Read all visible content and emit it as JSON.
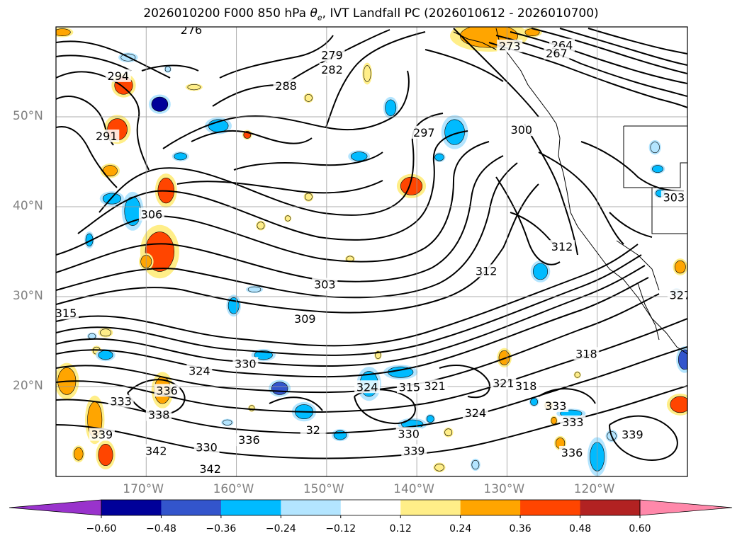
{
  "title": {
    "prefix": "2026010200 F000 850 hPa ",
    "theta": "θ",
    "theta_sub": "e",
    "suffix": ", IVT Landfall PC (2026010612 - 2026010700)"
  },
  "map": {
    "lon_range": [
      -180,
      -110
    ],
    "lat_range": [
      10,
      60
    ],
    "lat_labels": [
      {
        "lat": 50,
        "text": "50°N"
      },
      {
        "lat": 40,
        "text": "40°N"
      },
      {
        "lat": 30,
        "text": "30°N"
      },
      {
        "lat": 20,
        "text": "20°N"
      }
    ],
    "lon_labels": [
      {
        "lon": -170,
        "text": "170°W"
      },
      {
        "lon": -160,
        "text": "160°W"
      },
      {
        "lon": -150,
        "text": "150°W"
      },
      {
        "lon": -140,
        "text": "140°W"
      },
      {
        "lon": -130,
        "text": "130°W"
      },
      {
        "lon": -120,
        "text": "120°W"
      }
    ],
    "grid": true,
    "contour_labels": [
      {
        "text": "276",
        "lon": -165.0,
        "lat": 59.6
      },
      {
        "text": "279",
        "lon": -149.4,
        "lat": 56.8
      },
      {
        "text": "282",
        "lon": -149.4,
        "lat": 55.2
      },
      {
        "text": "288",
        "lon": -154.5,
        "lat": 53.4
      },
      {
        "text": "294",
        "lon": -173.1,
        "lat": 54.5
      },
      {
        "text": "291",
        "lon": -174.4,
        "lat": 47.8
      },
      {
        "text": "306",
        "lon": -169.4,
        "lat": 39.1
      },
      {
        "text": "297",
        "lon": -139.2,
        "lat": 48.2
      },
      {
        "text": "300",
        "lon": -128.4,
        "lat": 48.5
      },
      {
        "text": "264",
        "lon": -123.9,
        "lat": 57.9
      },
      {
        "text": "267",
        "lon": -124.5,
        "lat": 57.0
      },
      {
        "text": "273",
        "lon": -129.7,
        "lat": 57.8
      },
      {
        "text": "303",
        "lon": -150.2,
        "lat": 31.3
      },
      {
        "text": "309",
        "lon": -152.4,
        "lat": 27.5
      },
      {
        "text": "312",
        "lon": -132.3,
        "lat": 32.8
      },
      {
        "text": "312",
        "lon": -123.9,
        "lat": 35.5
      },
      {
        "text": "315",
        "lon": -178.9,
        "lat": 28.1
      },
      {
        "text": "315",
        "lon": -140.8,
        "lat": 19.9
      },
      {
        "text": "318",
        "lon": -121.2,
        "lat": 23.6
      },
      {
        "text": "318",
        "lon": -127.9,
        "lat": 20.0
      },
      {
        "text": "321",
        "lon": -138.0,
        "lat": 20.0
      },
      {
        "text": "321",
        "lon": -130.4,
        "lat": 20.3
      },
      {
        "text": "324",
        "lon": -164.1,
        "lat": 21.7
      },
      {
        "text": "324",
        "lon": -145.5,
        "lat": 19.9
      },
      {
        "text": "324",
        "lon": -133.5,
        "lat": 17.0
      },
      {
        "text": "327",
        "lon": -110.8,
        "lat": 30.1
      },
      {
        "text": "330",
        "lon": -159.0,
        "lat": 22.5
      },
      {
        "text": "330",
        "lon": -163.3,
        "lat": 13.2
      },
      {
        "text": "330",
        "lon": -140.9,
        "lat": 14.7
      },
      {
        "text": "333",
        "lon": -172.8,
        "lat": 18.3
      },
      {
        "text": "333",
        "lon": -124.6,
        "lat": 17.8
      },
      {
        "text": "333",
        "lon": -122.7,
        "lat": 16.0
      },
      {
        "text": "336",
        "lon": -167.7,
        "lat": 19.5
      },
      {
        "text": "336",
        "lon": -158.6,
        "lat": 14.0
      },
      {
        "text": "336",
        "lon": -122.8,
        "lat": 12.6
      },
      {
        "text": "338",
        "lon": -168.6,
        "lat": 16.8
      },
      {
        "text": "339",
        "lon": -174.9,
        "lat": 14.6
      },
      {
        "text": "339",
        "lon": -140.3,
        "lat": 12.8
      },
      {
        "text": "339",
        "lon": -116.1,
        "lat": 14.6
      },
      {
        "text": "342",
        "lon": -168.9,
        "lat": 12.8
      },
      {
        "text": "342",
        "lon": -162.9,
        "lat": 10.8
      },
      {
        "text": "32",
        "lon": -151.5,
        "lat": 15.1
      },
      {
        "text": "303",
        "lon": -111.5,
        "lat": 41.0
      }
    ],
    "pc_blobs": [
      {
        "lon": -179.3,
        "lat": 59.4,
        "rx": 0.9,
        "ry": 0.4,
        "level": 0.3
      },
      {
        "lon": -172.5,
        "lat": 53.5,
        "rx": 1.0,
        "ry": 1.0,
        "level": 0.42
      },
      {
        "lon": -168.5,
        "lat": 51.4,
        "rx": 0.9,
        "ry": 0.8,
        "level": -0.5
      },
      {
        "lon": -162.0,
        "lat": 49.0,
        "rx": 1.1,
        "ry": 0.7,
        "level": -0.35
      },
      {
        "lon": -158.8,
        "lat": 48.0,
        "rx": 0.4,
        "ry": 0.4,
        "level": 0.4
      },
      {
        "lon": -173.2,
        "lat": 48.6,
        "rx": 1.1,
        "ry": 1.2,
        "level": 0.42
      },
      {
        "lon": -167.8,
        "lat": 41.8,
        "rx": 0.9,
        "ry": 1.4,
        "level": 0.4
      },
      {
        "lon": -174.0,
        "lat": 44.0,
        "rx": 0.8,
        "ry": 0.6,
        "level": 0.25
      },
      {
        "lon": -173.8,
        "lat": 40.9,
        "rx": 1.0,
        "ry": 0.6,
        "level": -0.3
      },
      {
        "lon": -171.5,
        "lat": 39.5,
        "rx": 0.9,
        "ry": 1.6,
        "level": -0.3
      },
      {
        "lon": -168.5,
        "lat": 35.0,
        "rx": 1.6,
        "ry": 2.2,
        "level": 0.38
      },
      {
        "lon": -170.0,
        "lat": 33.9,
        "rx": 0.6,
        "ry": 0.7,
        "level": 0.25
      },
      {
        "lon": -176.3,
        "lat": 36.3,
        "rx": 0.4,
        "ry": 0.7,
        "level": -0.3
      },
      {
        "lon": -166.2,
        "lat": 45.6,
        "rx": 0.7,
        "ry": 0.4,
        "level": -0.3
      },
      {
        "lon": -160.3,
        "lat": 29.0,
        "rx": 0.6,
        "ry": 0.9,
        "level": -0.3
      },
      {
        "lon": -158.0,
        "lat": 30.8,
        "rx": 0.7,
        "ry": 0.3,
        "level": -0.2
      },
      {
        "lon": -140.6,
        "lat": 42.3,
        "rx": 1.2,
        "ry": 1.0,
        "level": 0.45
      },
      {
        "lon": -135.8,
        "lat": 48.3,
        "rx": 1.1,
        "ry": 1.4,
        "level": -0.35
      },
      {
        "lon": -142.9,
        "lat": 51.0,
        "rx": 0.6,
        "ry": 0.9,
        "level": -0.3
      },
      {
        "lon": -137.5,
        "lat": 45.5,
        "rx": 0.5,
        "ry": 0.4,
        "level": -0.25
      },
      {
        "lon": -146.4,
        "lat": 45.6,
        "rx": 0.9,
        "ry": 0.5,
        "level": -0.35
      },
      {
        "lon": -132.0,
        "lat": 59.0,
        "rx": 3.2,
        "ry": 1.3,
        "level": 0.32
      },
      {
        "lon": -127.2,
        "lat": 59.4,
        "rx": 0.8,
        "ry": 0.4,
        "level": 0.28
      },
      {
        "lon": -145.5,
        "lat": 54.8,
        "rx": 0.4,
        "ry": 0.9,
        "level": 0.2
      },
      {
        "lon": -152.0,
        "lat": 52.1,
        "rx": 0.4,
        "ry": 0.4,
        "level": 0.22
      },
      {
        "lon": -164.7,
        "lat": 53.3,
        "rx": 0.7,
        "ry": 0.3,
        "level": 0.2
      },
      {
        "lon": -172.0,
        "lat": 56.6,
        "rx": 0.8,
        "ry": 0.4,
        "level": -0.22
      },
      {
        "lon": -167.6,
        "lat": 55.3,
        "rx": 0.3,
        "ry": 0.3,
        "level": -0.2
      },
      {
        "lon": -154.3,
        "lat": 38.7,
        "rx": 0.3,
        "ry": 0.3,
        "level": 0.2
      },
      {
        "lon": -152.0,
        "lat": 41.1,
        "rx": 0.4,
        "ry": 0.4,
        "level": 0.2
      },
      {
        "lon": -157.3,
        "lat": 37.9,
        "rx": 0.4,
        "ry": 0.4,
        "level": 0.2
      },
      {
        "lon": -147.4,
        "lat": 34.2,
        "rx": 0.4,
        "ry": 0.3,
        "level": 0.2
      },
      {
        "lon": -126.3,
        "lat": 32.8,
        "rx": 0.8,
        "ry": 0.9,
        "level": -0.3
      },
      {
        "lon": -113.6,
        "lat": 46.6,
        "rx": 0.5,
        "ry": 0.6,
        "level": -0.2
      },
      {
        "lon": -113.3,
        "lat": 44.2,
        "rx": 0.6,
        "ry": 0.4,
        "level": -0.3
      },
      {
        "lon": -113.0,
        "lat": 41.5,
        "rx": 0.5,
        "ry": 0.4,
        "level": -0.3
      },
      {
        "lon": -110.8,
        "lat": 33.3,
        "rx": 0.6,
        "ry": 0.7,
        "level": 0.25
      },
      {
        "lon": -111.2,
        "lat": 30.5,
        "rx": 0.5,
        "ry": 0.3,
        "level": -0.2
      },
      {
        "lon": -110.3,
        "lat": 23.0,
        "rx": 0.7,
        "ry": 1.1,
        "level": -0.4
      },
      {
        "lon": -110.8,
        "lat": 18.0,
        "rx": 1.1,
        "ry": 0.9,
        "level": 0.42
      },
      {
        "lon": -178.8,
        "lat": 20.6,
        "rx": 1.0,
        "ry": 1.5,
        "level": 0.32
      },
      {
        "lon": -175.5,
        "lat": 24.0,
        "rx": 0.4,
        "ry": 0.4,
        "level": 0.22
      },
      {
        "lon": -174.5,
        "lat": 26.0,
        "rx": 0.6,
        "ry": 0.4,
        "level": 0.22
      },
      {
        "lon": -176.0,
        "lat": 25.6,
        "rx": 0.4,
        "ry": 0.3,
        "level": -0.2
      },
      {
        "lon": -174.5,
        "lat": 23.5,
        "rx": 0.8,
        "ry": 0.5,
        "level": -0.25
      },
      {
        "lon": -175.7,
        "lat": 16.3,
        "rx": 0.8,
        "ry": 2.0,
        "level": 0.35
      },
      {
        "lon": -174.5,
        "lat": 12.4,
        "rx": 0.8,
        "ry": 1.2,
        "level": 0.45
      },
      {
        "lon": -168.2,
        "lat": 19.6,
        "rx": 0.9,
        "ry": 1.5,
        "level": 0.3
      },
      {
        "lon": -157.0,
        "lat": 23.5,
        "rx": 1.0,
        "ry": 0.5,
        "level": -0.35
      },
      {
        "lon": -155.2,
        "lat": 19.8,
        "rx": 0.9,
        "ry": 0.7,
        "level": -0.4
      },
      {
        "lon": -152.5,
        "lat": 17.2,
        "rx": 1.0,
        "ry": 0.8,
        "level": -0.35
      },
      {
        "lon": -145.3,
        "lat": 20.3,
        "rx": 1.0,
        "ry": 1.4,
        "level": -0.35
      },
      {
        "lon": -141.8,
        "lat": 21.6,
        "rx": 1.4,
        "ry": 0.6,
        "level": -0.35
      },
      {
        "lon": -144.3,
        "lat": 23.5,
        "rx": 0.3,
        "ry": 0.4,
        "level": 0.2
      },
      {
        "lon": -140.5,
        "lat": 15.8,
        "rx": 1.2,
        "ry": 0.5,
        "level": -0.25
      },
      {
        "lon": -138.5,
        "lat": 16.4,
        "rx": 0.4,
        "ry": 0.4,
        "level": -0.25
      },
      {
        "lon": -136.5,
        "lat": 14.9,
        "rx": 0.4,
        "ry": 0.4,
        "level": 0.2
      },
      {
        "lon": -137.5,
        "lat": 11.0,
        "rx": 0.5,
        "ry": 0.4,
        "level": 0.2
      },
      {
        "lon": -133.5,
        "lat": 11.3,
        "rx": 0.4,
        "ry": 0.5,
        "level": -0.2
      },
      {
        "lon": -148.5,
        "lat": 14.6,
        "rx": 0.7,
        "ry": 0.5,
        "level": -0.25
      },
      {
        "lon": -158.3,
        "lat": 17.6,
        "rx": 0.3,
        "ry": 0.3,
        "level": 0.2
      },
      {
        "lon": -161.0,
        "lat": 16.0,
        "rx": 0.5,
        "ry": 0.3,
        "level": -0.2
      },
      {
        "lon": -130.3,
        "lat": 23.2,
        "rx": 0.6,
        "ry": 0.8,
        "level": 0.3
      },
      {
        "lon": -127.0,
        "lat": 18.3,
        "rx": 0.4,
        "ry": 0.4,
        "level": -0.3
      },
      {
        "lon": -125.4,
        "lat": 17.9,
        "rx": 0.4,
        "ry": 0.4,
        "level": 0.25
      },
      {
        "lon": -124.8,
        "lat": 16.2,
        "rx": 0.3,
        "ry": 0.4,
        "level": 0.3
      },
      {
        "lon": -122.9,
        "lat": 17.0,
        "rx": 1.2,
        "ry": 0.4,
        "level": -0.3
      },
      {
        "lon": -124.1,
        "lat": 13.7,
        "rx": 0.5,
        "ry": 0.6,
        "level": 0.3
      },
      {
        "lon": -120.0,
        "lat": 12.2,
        "rx": 0.8,
        "ry": 1.6,
        "level": -0.3
      },
      {
        "lon": -118.4,
        "lat": 14.5,
        "rx": 0.5,
        "ry": 0.5,
        "level": -0.2
      },
      {
        "lon": -122.2,
        "lat": 21.3,
        "rx": 0.3,
        "ry": 0.3,
        "level": 0.2
      },
      {
        "lon": -177.5,
        "lat": 12.5,
        "rx": 0.5,
        "ry": 0.7,
        "level": 0.3
      }
    ]
  },
  "colorbar": {
    "colors": [
      "#9933cc",
      "#000099",
      "#3355cc",
      "#00bbff",
      "#b3e5ff",
      "#ffffff",
      "#ffee88",
      "#ffa500",
      "#ff4500",
      "#b22222",
      "#ff88aa"
    ],
    "ticks": [
      "−0.60",
      "−0.48",
      "−0.36",
      "−0.24",
      "−0.12",
      "0.12",
      "0.24",
      "0.36",
      "0.48",
      "0.60"
    ],
    "levels": [
      -0.6,
      -0.48,
      -0.36,
      -0.24,
      -0.12,
      0.12,
      0.24,
      0.36,
      0.48,
      0.6
    ]
  }
}
